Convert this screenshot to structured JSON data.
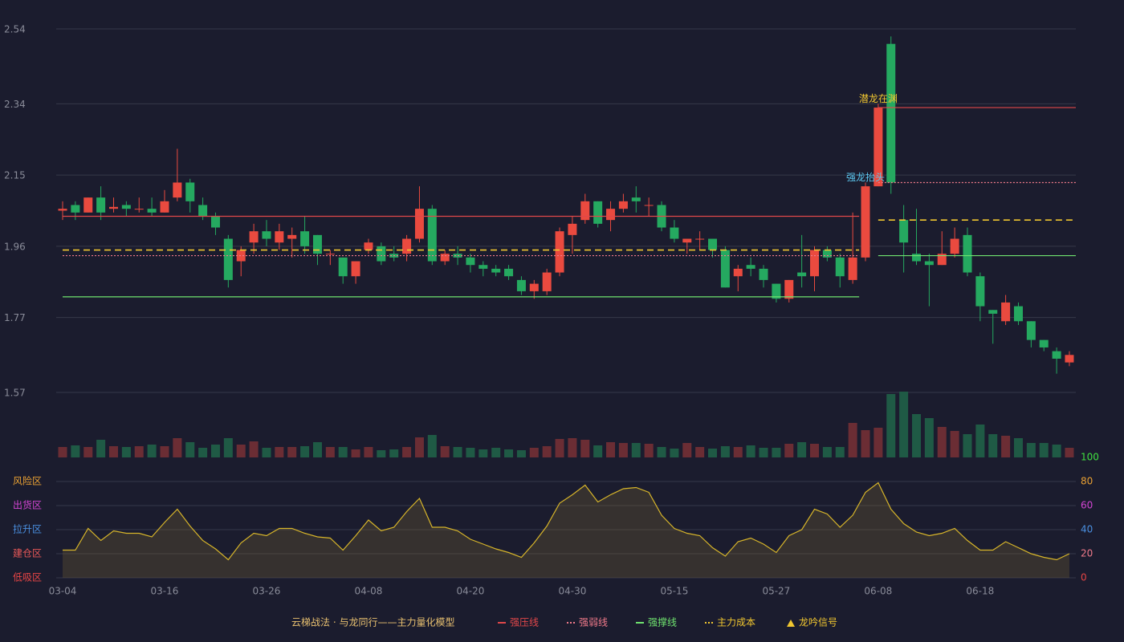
{
  "chart_data": {
    "type": "candlestick",
    "categories": [
      "03-04",
      null,
      null,
      null,
      null,
      null,
      null,
      null,
      "03-16",
      null,
      null,
      null,
      null,
      null,
      null,
      null,
      "03-26",
      null,
      null,
      null,
      null,
      null,
      null,
      null,
      "04-08",
      null,
      null,
      null,
      null,
      null,
      null,
      null,
      "04-20",
      null,
      null,
      null,
      null,
      null,
      null,
      null,
      "04-30",
      null,
      null,
      null,
      null,
      null,
      null,
      null,
      "05-15",
      null,
      null,
      null,
      null,
      null,
      null,
      null,
      "05-27",
      null,
      null,
      null,
      null,
      null,
      null,
      null,
      "06-08",
      null,
      null,
      null,
      null,
      null,
      null,
      null,
      "06-18",
      null,
      null,
      null,
      null,
      null,
      null,
      null
    ],
    "open": [
      2.055,
      2.07,
      2.05,
      2.09,
      2.06,
      2.07,
      2.06,
      2.06,
      2.05,
      2.09,
      2.13,
      2.07,
      2.04,
      1.98,
      1.92,
      1.97,
      2.0,
      1.97,
      1.98,
      2.0,
      1.99,
      1.94,
      1.93,
      1.88,
      1.95,
      1.96,
      1.94,
      1.94,
      1.98,
      2.06,
      1.92,
      1.94,
      1.93,
      1.91,
      1.9,
      1.9,
      1.87,
      1.84,
      1.84,
      1.89,
      1.99,
      2.03,
      2.08,
      2.03,
      2.06,
      2.09,
      2.07,
      2.07,
      2.01,
      1.97,
      1.98,
      1.98,
      1.95,
      1.88,
      1.91,
      1.9,
      1.86,
      1.82,
      1.89,
      1.88,
      1.95,
      1.93,
      1.87,
      1.93,
      2.12,
      2.5,
      2.03,
      1.94,
      1.92,
      1.91,
      1.94,
      1.99,
      1.88,
      1.79,
      1.76,
      1.8,
      1.76,
      1.71,
      1.68,
      1.65
    ],
    "high": [
      2.08,
      2.08,
      2.09,
      2.12,
      2.09,
      2.08,
      2.09,
      2.09,
      2.11,
      2.22,
      2.14,
      2.09,
      2.05,
      1.99,
      1.96,
      2.02,
      2.03,
      2.02,
      2.01,
      2.04,
      1.99,
      1.95,
      1.93,
      1.92,
      1.98,
      1.97,
      1.96,
      1.99,
      2.12,
      2.07,
      1.95,
      1.96,
      1.94,
      1.92,
      1.91,
      1.91,
      1.88,
      1.87,
      1.9,
      2.01,
      2.04,
      2.1,
      2.08,
      2.08,
      2.1,
      2.12,
      2.09,
      2.08,
      2.03,
      1.98,
      2.0,
      1.98,
      1.96,
      1.91,
      1.93,
      1.91,
      1.86,
      1.87,
      1.99,
      1.96,
      1.96,
      1.94,
      2.05,
      2.13,
      2.34,
      2.52,
      2.07,
      2.06,
      1.94,
      2.0,
      2.01,
      2.01,
      1.89,
      1.79,
      1.83,
      1.81,
      1.76,
      1.71,
      1.69,
      1.68
    ],
    "low": [
      2.03,
      2.03,
      2.05,
      2.03,
      2.05,
      2.04,
      2.05,
      2.04,
      2.05,
      2.08,
      2.05,
      2.03,
      1.99,
      1.85,
      1.88,
      1.94,
      1.96,
      1.95,
      1.93,
      1.94,
      1.91,
      1.91,
      1.86,
      1.86,
      1.94,
      1.91,
      1.92,
      1.92,
      1.97,
      1.91,
      1.91,
      1.91,
      1.89,
      1.88,
      1.88,
      1.87,
      1.83,
      1.82,
      1.83,
      1.88,
      1.94,
      2.02,
      2.01,
      2.0,
      2.05,
      2.05,
      2.04,
      2.0,
      1.97,
      1.94,
      1.95,
      1.93,
      1.85,
      1.84,
      1.88,
      1.85,
      1.81,
      1.81,
      1.85,
      1.84,
      1.92,
      1.85,
      1.86,
      1.92,
      2.12,
      2.1,
      1.89,
      1.91,
      1.8,
      1.91,
      1.93,
      1.88,
      1.76,
      1.7,
      1.75,
      1.75,
      1.69,
      1.68,
      1.62,
      1.64
    ],
    "close": [
      2.06,
      2.05,
      2.09,
      2.05,
      2.065,
      2.06,
      2.06,
      2.05,
      2.08,
      2.13,
      2.08,
      2.04,
      2.01,
      1.87,
      1.95,
      2.0,
      1.98,
      2.0,
      1.99,
      1.96,
      1.94,
      1.94,
      1.88,
      1.92,
      1.97,
      1.92,
      1.93,
      1.98,
      2.06,
      1.92,
      1.94,
      1.93,
      1.91,
      1.9,
      1.89,
      1.88,
      1.84,
      1.86,
      1.89,
      2.0,
      2.02,
      2.08,
      2.02,
      2.06,
      2.08,
      2.08,
      2.07,
      2.01,
      1.98,
      1.98,
      1.98,
      1.95,
      1.85,
      1.9,
      1.9,
      1.87,
      1.82,
      1.87,
      1.88,
      1.95,
      1.93,
      1.88,
      1.93,
      2.12,
      2.33,
      2.13,
      1.97,
      1.92,
      1.91,
      1.94,
      1.98,
      1.89,
      1.8,
      1.78,
      1.81,
      1.76,
      1.71,
      1.69,
      1.66,
      1.67
    ],
    "up_color": "#ea4a3f",
    "down_color": "#25a960",
    "ylim": [
      1.57,
      2.54
    ],
    "yticks": [
      1.57,
      1.77,
      1.96,
      2.15,
      2.34,
      2.54
    ],
    "grid": true,
    "volume": [
      13,
      15,
      13,
      22,
      14,
      13,
      14,
      16,
      14,
      24,
      19,
      12,
      16,
      24,
      16,
      20,
      12,
      13,
      13,
      14,
      19,
      13,
      13,
      10,
      13,
      9,
      10,
      13,
      25,
      28,
      14,
      13,
      12,
      10,
      12,
      10,
      9,
      12,
      14,
      23,
      24,
      22,
      15,
      19,
      18,
      18,
      17,
      13,
      11,
      18,
      13,
      11,
      14,
      13,
      15,
      12,
      12,
      17,
      19,
      17,
      13,
      13,
      43,
      34,
      37,
      79,
      82,
      54,
      49,
      38,
      33,
      29,
      41,
      29,
      27,
      24,
      18,
      18,
      16,
      12
    ],
    "volume_up_color": "#6b2d34",
    "volume_down_color": "#1f5a45",
    "levels": [
      {
        "name": "强压线",
        "color": "#e0474a",
        "dash": "none",
        "segments": [
          {
            "start": 0,
            "end": 62,
            "value": 2.04
          },
          {
            "start": 64,
            "end": 79,
            "value": 2.33
          }
        ]
      },
      {
        "name": "强弱线",
        "color": "#f07a8a",
        "dash": "2,2",
        "segments": [
          {
            "start": 0,
            "end": 62,
            "value": 1.935
          },
          {
            "start": 64,
            "end": 79,
            "value": 2.13
          }
        ]
      },
      {
        "name": "强撑线",
        "color": "#6fe36f",
        "dash": "none",
        "segments": [
          {
            "start": 0,
            "end": 62,
            "value": 1.825
          },
          {
            "start": 64,
            "end": 79,
            "value": 1.935
          }
        ]
      },
      {
        "name": "主力成本",
        "color": "#f0c630",
        "dash": "8,5",
        "segments": [
          {
            "start": 0,
            "end": 62,
            "value": 1.95
          },
          {
            "start": 64,
            "end": 79,
            "value": 2.03
          }
        ]
      }
    ],
    "signals": [
      {
        "text": "强龙抬头",
        "index": 63,
        "value": 2.13,
        "color": "#5cc8f0"
      },
      {
        "text": "潜龙在渊",
        "index": 64,
        "value": 2.34,
        "color": "#f0c630"
      }
    ],
    "oscillator": {
      "values": [
        23,
        23,
        41,
        31,
        39,
        37,
        37,
        34,
        46,
        57,
        43,
        31,
        24,
        15,
        29,
        37,
        35,
        41,
        41,
        37,
        34,
        33,
        23,
        35,
        48,
        39,
        42,
        55,
        66,
        42,
        42,
        39,
        32,
        28,
        24,
        21,
        17,
        29,
        43,
        62,
        69,
        77,
        63,
        69,
        74,
        75,
        71,
        52,
        41,
        37,
        35,
        25,
        18,
        30,
        33,
        28,
        21,
        35,
        40,
        57,
        53,
        42,
        52,
        71,
        79,
        57,
        45,
        38,
        35,
        37,
        41,
        31,
        23,
        23,
        30,
        25,
        20,
        17,
        15,
        20
      ],
      "color": "#d7b52a",
      "ylim": [
        0,
        100
      ],
      "yticks": [
        0,
        20,
        40,
        60,
        80,
        100
      ],
      "tick_colors": [
        "#e84545",
        "#f07a8a",
        "#4a8fe0",
        "#d445d4",
        "#e8a033",
        "#40e040"
      ],
      "zones": [
        {
          "label": "风险区",
          "value": 80,
          "color": "#e8a033"
        },
        {
          "label": "出货区",
          "value": 60,
          "color": "#d445d4"
        },
        {
          "label": "拉升区",
          "value": 40,
          "color": "#4a8fe0"
        },
        {
          "label": "建仓区",
          "value": 20,
          "color": "#e85858"
        },
        {
          "label": "低吸区",
          "value": 0,
          "color": "#e84545"
        }
      ]
    },
    "legend_title": "云梯战法 · 与龙同行——主力量化模型",
    "signal_legend": "龙吟信号",
    "legend_title_color": "#e8c070"
  }
}
